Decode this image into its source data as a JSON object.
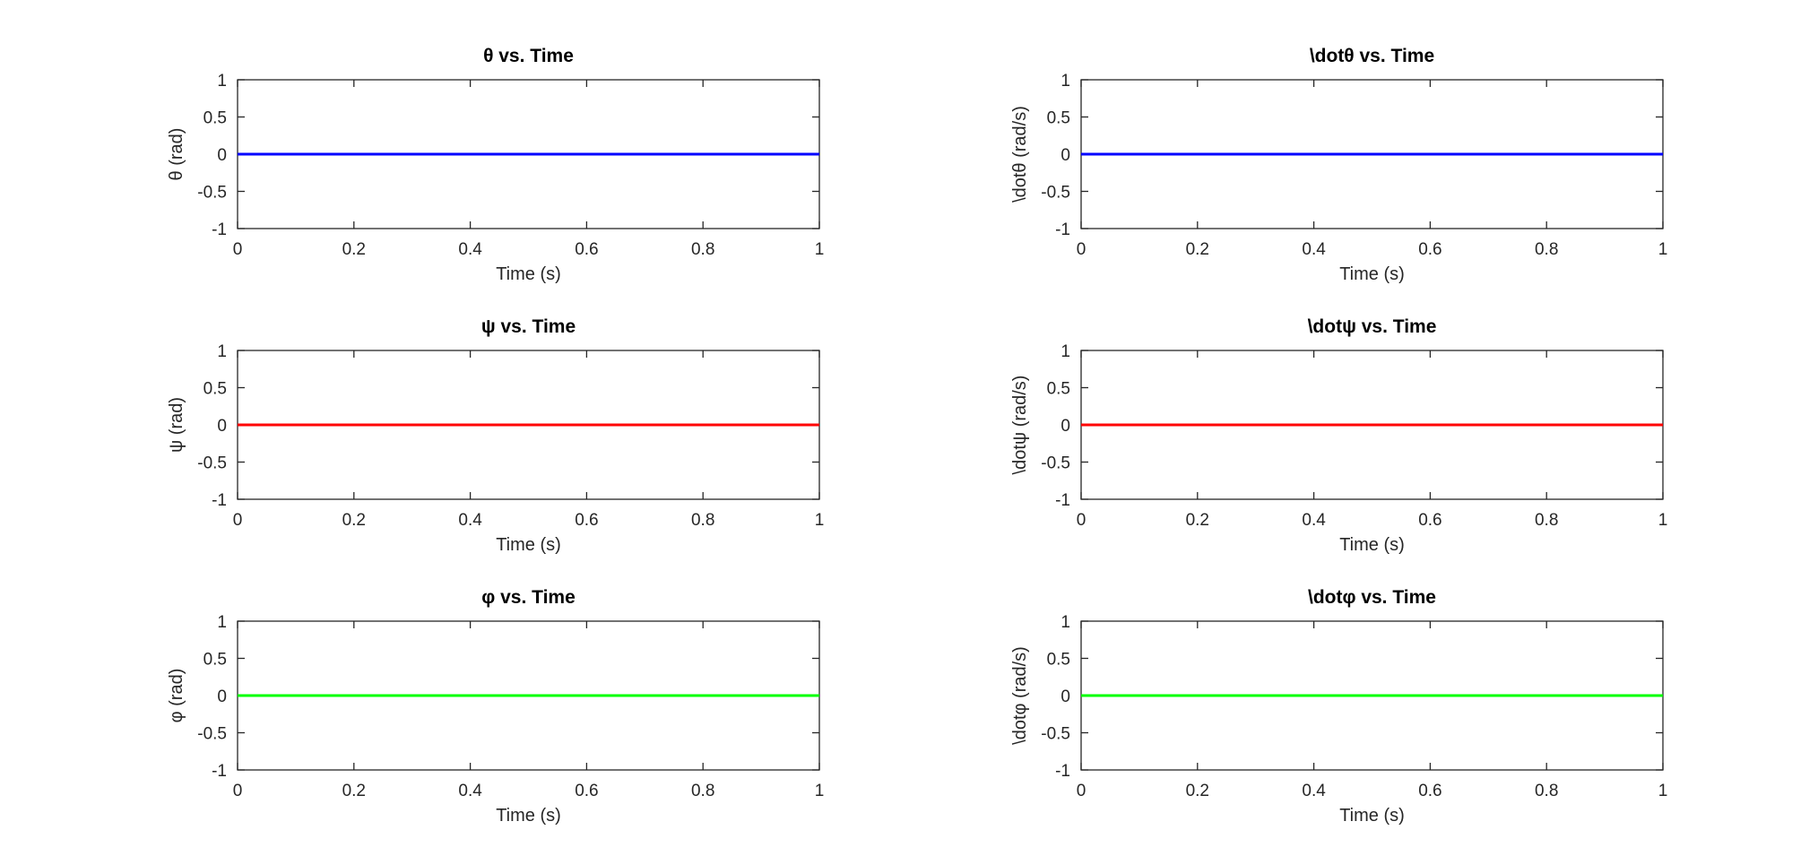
{
  "chart_data": [
    {
      "type": "line",
      "title": "θ vs. Time",
      "xlabel": "Time (s)",
      "ylabel": "θ (rad)",
      "xlim": [
        0,
        1
      ],
      "ylim": [
        -1,
        1
      ],
      "xticks": [
        0,
        0.2,
        0.4,
        0.6,
        0.8,
        1
      ],
      "xtick_labels": [
        "0",
        "0.2",
        "0.4",
        "0.6",
        "0.8",
        "1"
      ],
      "yticks": [
        -1,
        -0.5,
        0,
        0.5,
        1
      ],
      "ytick_labels": [
        "-1",
        "-0.5",
        "0",
        "0.5",
        "1"
      ],
      "grid": false,
      "series": [
        {
          "color": "#0000ff",
          "x": [
            0,
            1
          ],
          "y": [
            0,
            0
          ]
        }
      ]
    },
    {
      "type": "line",
      "title": "\\dotθ vs. Time",
      "xlabel": "Time (s)",
      "ylabel": "\\dotθ (rad/s)",
      "xlim": [
        0,
        1
      ],
      "ylim": [
        -1,
        1
      ],
      "xticks": [
        0,
        0.2,
        0.4,
        0.6,
        0.8,
        1
      ],
      "xtick_labels": [
        "0",
        "0.2",
        "0.4",
        "0.6",
        "0.8",
        "1"
      ],
      "yticks": [
        -1,
        -0.5,
        0,
        0.5,
        1
      ],
      "ytick_labels": [
        "-1",
        "-0.5",
        "0",
        "0.5",
        "1"
      ],
      "grid": false,
      "series": [
        {
          "color": "#0000ff",
          "x": [
            0,
            1
          ],
          "y": [
            0,
            0
          ]
        }
      ]
    },
    {
      "type": "line",
      "title": "ψ vs. Time",
      "xlabel": "Time (s)",
      "ylabel": "ψ (rad)",
      "xlim": [
        0,
        1
      ],
      "ylim": [
        -1,
        1
      ],
      "xticks": [
        0,
        0.2,
        0.4,
        0.6,
        0.8,
        1
      ],
      "xtick_labels": [
        "0",
        "0.2",
        "0.4",
        "0.6",
        "0.8",
        "1"
      ],
      "yticks": [
        -1,
        -0.5,
        0,
        0.5,
        1
      ],
      "ytick_labels": [
        "-1",
        "-0.5",
        "0",
        "0.5",
        "1"
      ],
      "grid": false,
      "series": [
        {
          "color": "#ff0000",
          "x": [
            0,
            1
          ],
          "y": [
            0,
            0
          ]
        }
      ]
    },
    {
      "type": "line",
      "title": "\\dotψ vs. Time",
      "xlabel": "Time (s)",
      "ylabel": "\\dotψ (rad/s)",
      "xlim": [
        0,
        1
      ],
      "ylim": [
        -1,
        1
      ],
      "xticks": [
        0,
        0.2,
        0.4,
        0.6,
        0.8,
        1
      ],
      "xtick_labels": [
        "0",
        "0.2",
        "0.4",
        "0.6",
        "0.8",
        "1"
      ],
      "yticks": [
        -1,
        -0.5,
        0,
        0.5,
        1
      ],
      "ytick_labels": [
        "-1",
        "-0.5",
        "0",
        "0.5",
        "1"
      ],
      "grid": false,
      "series": [
        {
          "color": "#ff0000",
          "x": [
            0,
            1
          ],
          "y": [
            0,
            0
          ]
        }
      ]
    },
    {
      "type": "line",
      "title": "φ vs. Time",
      "xlabel": "Time (s)",
      "ylabel": "φ (rad)",
      "xlim": [
        0,
        1
      ],
      "ylim": [
        -1,
        1
      ],
      "xticks": [
        0,
        0.2,
        0.4,
        0.6,
        0.8,
        1
      ],
      "xtick_labels": [
        "0",
        "0.2",
        "0.4",
        "0.6",
        "0.8",
        "1"
      ],
      "yticks": [
        -1,
        -0.5,
        0,
        0.5,
        1
      ],
      "ytick_labels": [
        "-1",
        "-0.5",
        "0",
        "0.5",
        "1"
      ],
      "grid": false,
      "series": [
        {
          "color": "#00ff00",
          "x": [
            0,
            1
          ],
          "y": [
            0,
            0
          ]
        }
      ]
    },
    {
      "type": "line",
      "title": "\\dotφ vs. Time",
      "xlabel": "Time (s)",
      "ylabel": "\\dotφ (rad/s)",
      "xlim": [
        0,
        1
      ],
      "ylim": [
        -1,
        1
      ],
      "xticks": [
        0,
        0.2,
        0.4,
        0.6,
        0.8,
        1
      ],
      "xtick_labels": [
        "0",
        "0.2",
        "0.4",
        "0.6",
        "0.8",
        "1"
      ],
      "yticks": [
        -1,
        -0.5,
        0,
        0.5,
        1
      ],
      "ytick_labels": [
        "-1",
        "-0.5",
        "0",
        "0.5",
        "1"
      ],
      "grid": false,
      "series": [
        {
          "color": "#00ff00",
          "x": [
            0,
            1
          ],
          "y": [
            0,
            0
          ]
        }
      ]
    }
  ]
}
